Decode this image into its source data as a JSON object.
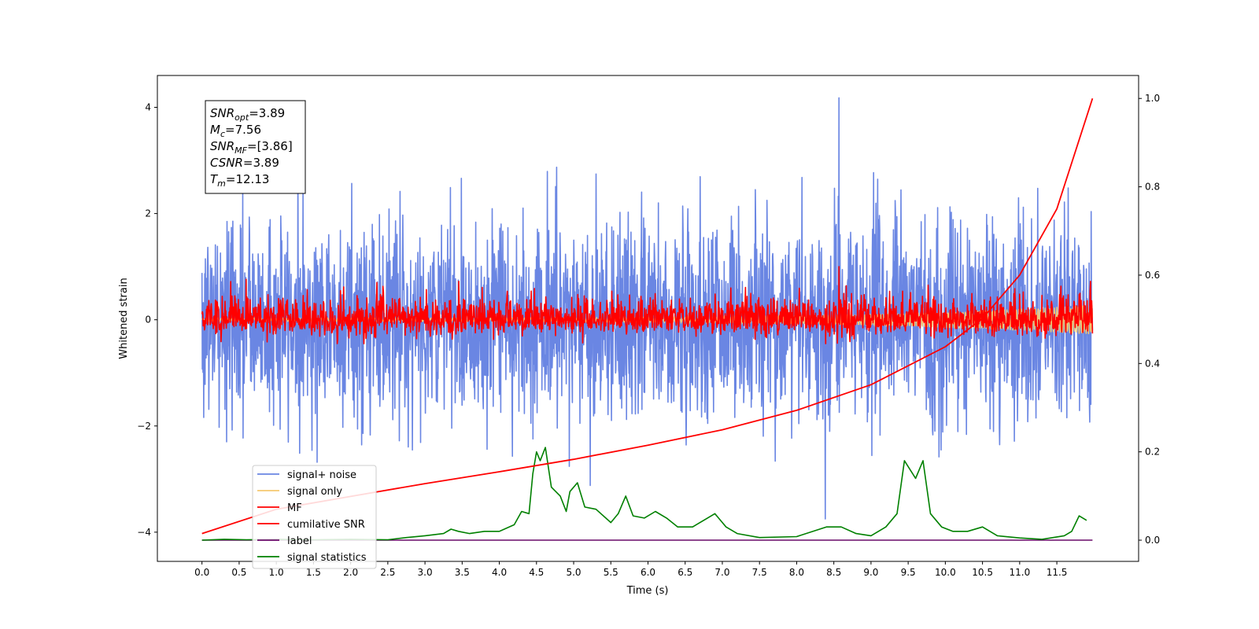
{
  "chart_data": {
    "type": "line",
    "title": "",
    "xlabel": "Time (s)",
    "ylabel": "Whitened strain",
    "ylabel_right": "",
    "xlim": [
      -0.6,
      12.6
    ],
    "ylim": [
      -4.55,
      4.6
    ],
    "ylim_right": [
      -0.048,
      1.052
    ],
    "x_ticks": [
      0.0,
      0.5,
      1.0,
      1.5,
      2.0,
      2.5,
      3.0,
      3.5,
      4.0,
      4.5,
      5.0,
      5.5,
      6.0,
      6.5,
      7.0,
      7.5,
      8.0,
      8.5,
      9.0,
      9.5,
      10.0,
      10.5,
      11.0,
      11.5
    ],
    "x_tick_labels": [
      "0.0",
      "0.5",
      "1.0",
      "1.5",
      "2.0",
      "2.5",
      "3.0",
      "3.5",
      "4.0",
      "4.5",
      "5.0",
      "5.5",
      "6.0",
      "6.5",
      "7.0",
      "7.5",
      "8.0",
      "8.5",
      "9.0",
      "9.5",
      "10.0",
      "10.5",
      "11.0",
      "11.5"
    ],
    "y_ticks": [
      -4,
      -2,
      0,
      2,
      4
    ],
    "y_tick_labels": [
      "−4",
      "−2",
      "0",
      "2",
      "4"
    ],
    "y_ticks_right": [
      0.0,
      0.2,
      0.4,
      0.6,
      0.8,
      1.0
    ],
    "y_tick_labels_right": [
      "0.0",
      "0.2",
      "0.4",
      "0.6",
      "0.8",
      "1.0"
    ],
    "grid": false,
    "legend_position": "lower-left",
    "series": [
      {
        "name": "signal+ noise",
        "color": "#6a86e3",
        "axis": "left",
        "kind": "noise",
        "t_range": [
          0.0,
          11.98
        ],
        "std": 0.95,
        "peak_max": 4.18,
        "peak_min": -3.75
      },
      {
        "name": "signal only",
        "color": "#f5c870",
        "axis": "left",
        "kind": "chirp",
        "t_range": [
          0.0,
          11.98
        ],
        "amplitude_end": 0.25
      },
      {
        "name": "MF",
        "color": "#ff0000",
        "axis": "left",
        "kind": "noise",
        "t_range": [
          0.0,
          11.98
        ],
        "std": 0.17,
        "peak_max": 1.0,
        "peak_min": -0.45
      },
      {
        "name": "cumilative SNR",
        "color": "#ff0000",
        "axis": "right",
        "kind": "curve",
        "x": [
          0.0,
          1.0,
          2.0,
          3.0,
          4.0,
          5.0,
          6.0,
          7.0,
          8.0,
          9.0,
          10.0,
          10.5,
          11.0,
          11.5,
          11.98
        ],
        "y": [
          0.015,
          0.07,
          0.099,
          0.128,
          0.155,
          0.183,
          0.215,
          0.25,
          0.294,
          0.352,
          0.438,
          0.502,
          0.6,
          0.75,
          1.0
        ]
      },
      {
        "name": "label",
        "color": "#6a0a6a",
        "axis": "right",
        "kind": "curve",
        "x": [
          0.0,
          11.98
        ],
        "y": [
          0.0,
          0.0
        ]
      },
      {
        "name": "signal statistics",
        "color": "#008000",
        "axis": "right",
        "kind": "curve",
        "x": [
          0.0,
          0.3,
          0.6,
          1.0,
          1.5,
          2.0,
          2.5,
          2.75,
          3.0,
          3.25,
          3.35,
          3.45,
          3.6,
          3.8,
          4.0,
          4.2,
          4.3,
          4.4,
          4.45,
          4.5,
          4.55,
          4.62,
          4.7,
          4.82,
          4.9,
          4.95,
          5.05,
          5.15,
          5.3,
          5.5,
          5.6,
          5.7,
          5.8,
          5.95,
          6.1,
          6.25,
          6.4,
          6.6,
          6.8,
          6.9,
          6.95,
          7.05,
          7.2,
          7.5,
          8.0,
          8.4,
          8.6,
          8.8,
          9.0,
          9.2,
          9.35,
          9.45,
          9.6,
          9.7,
          9.8,
          9.95,
          10.1,
          10.3,
          10.5,
          10.7,
          11.0,
          11.3,
          11.6,
          11.7,
          11.8,
          11.9
        ],
        "y": [
          0.0,
          0.002,
          0.001,
          0.002,
          0.001,
          0.002,
          0.001,
          0.006,
          0.01,
          0.015,
          0.025,
          0.02,
          0.015,
          0.02,
          0.02,
          0.035,
          0.065,
          0.06,
          0.15,
          0.2,
          0.18,
          0.21,
          0.12,
          0.1,
          0.065,
          0.11,
          0.13,
          0.075,
          0.07,
          0.04,
          0.06,
          0.1,
          0.055,
          0.05,
          0.065,
          0.05,
          0.03,
          0.03,
          0.05,
          0.06,
          0.05,
          0.03,
          0.015,
          0.006,
          0.008,
          0.03,
          0.03,
          0.015,
          0.01,
          0.03,
          0.06,
          0.18,
          0.14,
          0.18,
          0.06,
          0.03,
          0.02,
          0.02,
          0.03,
          0.01,
          0.005,
          0.002,
          0.01,
          0.02,
          0.055,
          0.045
        ]
      }
    ],
    "annotation_box": {
      "lines": [
        {
          "sym": "SNR",
          "sub": "opt",
          "value": "=3.89"
        },
        {
          "sym": "M",
          "sub": "c",
          "value": "=7.56"
        },
        {
          "sym": "SNR",
          "sub": "MF",
          "value": "=[3.86]"
        },
        {
          "sym": "CSNR",
          "sub": "",
          "value": "=3.89"
        },
        {
          "sym": "T",
          "sub": "m",
          "value": "=12.13"
        }
      ]
    }
  }
}
